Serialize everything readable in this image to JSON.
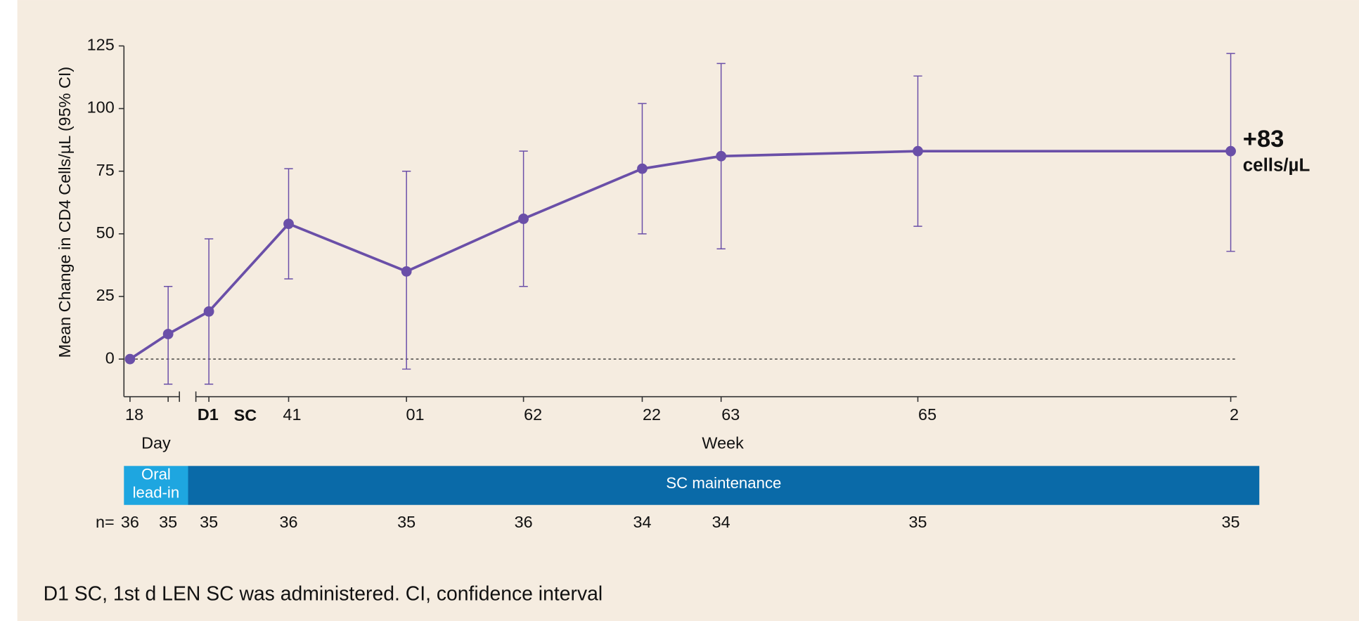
{
  "chart_data": {
    "type": "line",
    "y_label": "Mean Change in CD4 Cells/µL (95% CI)",
    "x_labels": [
      "Day",
      "Week"
    ],
    "categories": [
      "18",
      null,
      "D1",
      "41",
      "01",
      "62",
      "22",
      "63",
      "65",
      "2"
    ],
    "category_note": "SC",
    "series": [
      {
        "name": "Mean change",
        "color": "#6a4fa8",
        "values": [
          0,
          10,
          19,
          54,
          35,
          56,
          76,
          81,
          83,
          83
        ],
        "ci_low": [
          null,
          -10,
          -10,
          32,
          -4,
          29,
          50,
          44,
          53,
          43
        ],
        "ci_high": [
          null,
          29,
          48,
          76,
          75,
          83,
          102,
          118,
          113,
          122
        ]
      }
    ],
    "ylim": [
      -15,
      125
    ],
    "yticks": [
      0,
      25,
      50,
      75,
      100,
      125
    ],
    "hline": 0,
    "annotation": [
      "+83",
      "cells/µL"
    ],
    "phases": [
      {
        "lines": [
          "Oral",
          "lead-in"
        ],
        "color": "#1ea6e0"
      },
      {
        "lines": [
          "SC maintenance"
        ],
        "color": "#0a6aa8"
      }
    ],
    "n_label": "n=",
    "n": [
      36,
      35,
      35,
      36,
      35,
      36,
      34,
      34,
      35,
      35
    ]
  },
  "footnote": "D1 SC, 1st d LEN SC was administered. CI, confidence interval"
}
